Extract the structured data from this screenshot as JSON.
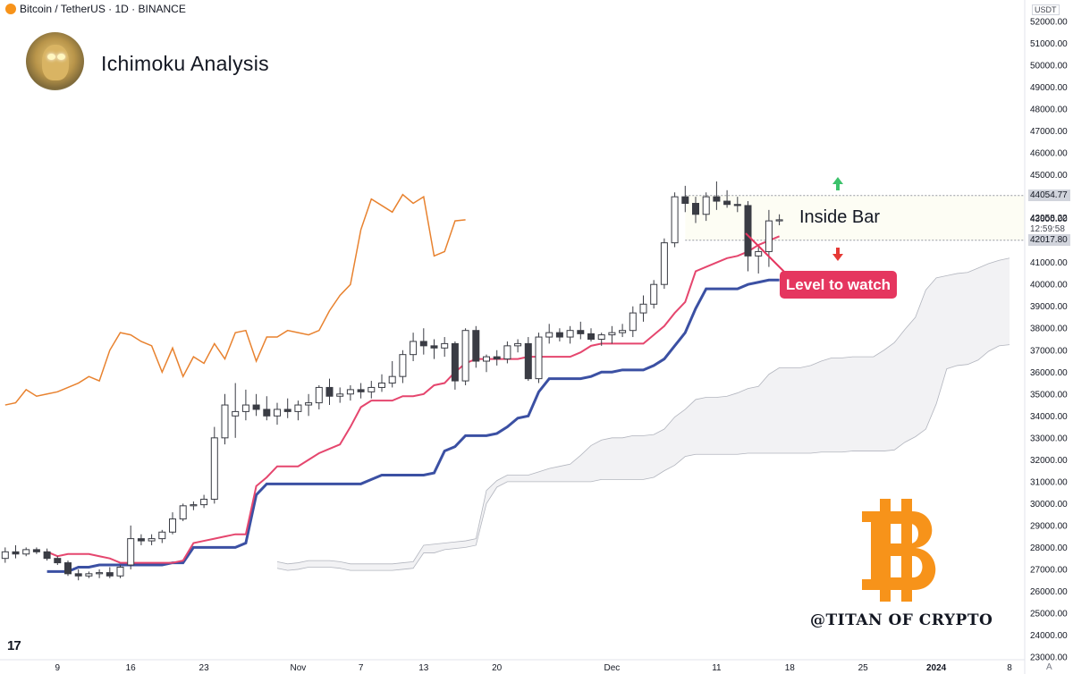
{
  "header": {
    "symbol": "Bitcoin / TetherUS · 1D · BINANCE"
  },
  "title": "Ichimoku Analysis",
  "annotations": {
    "inside_bar": "Inside Bar",
    "level_to_watch": "Level to watch"
  },
  "watermark": "@TITAN OF CRYPTO",
  "price_axis": {
    "currency": "USDT",
    "last_price": "42958.22",
    "countdown": "12:59:58",
    "level_high": "44054.77",
    "level_low": "42017.80",
    "corner": "A"
  },
  "colors": {
    "tenkan": "#e5466e",
    "kijun": "#3b50a3",
    "chikou": "#e8822f",
    "cloud": "#f2f2f4",
    "up": "#ffffff",
    "down": "#3a3c44",
    "accent": "#f7931a"
  },
  "chart_data": {
    "type": "candlestick",
    "ylim": [
      23000,
      52000
    ],
    "y_ticks": [
      23000,
      24000,
      25000,
      26000,
      27000,
      28000,
      29000,
      30000,
      31000,
      32000,
      33000,
      34000,
      35000,
      36000,
      37000,
      38000,
      39000,
      40000,
      41000,
      42000,
      43000,
      44000,
      45000,
      46000,
      47000,
      48000,
      49000,
      50000,
      51000,
      52000
    ],
    "x_ticks": [
      {
        "label": "9",
        "i": 5
      },
      {
        "label": "16",
        "i": 12
      },
      {
        "label": "23",
        "i": 19
      },
      {
        "label": "Nov",
        "i": 28
      },
      {
        "label": "7",
        "i": 34
      },
      {
        "label": "13",
        "i": 40
      },
      {
        "label": "20",
        "i": 47
      },
      {
        "label": "Dec",
        "i": 58
      },
      {
        "label": "11",
        "i": 68
      },
      {
        "label": "18",
        "i": 75
      },
      {
        "label": "25",
        "i": 82
      },
      {
        "label": "2024",
        "i": 89
      },
      {
        "label": "8",
        "i": 96
      }
    ],
    "candles": [
      [
        27500,
        28000,
        27300,
        27800
      ],
      [
        27800,
        28100,
        27500,
        27700
      ],
      [
        27700,
        28000,
        27600,
        27900
      ],
      [
        27900,
        28000,
        27700,
        27800
      ],
      [
        27800,
        27950,
        27400,
        27500
      ],
      [
        27500,
        27600,
        27200,
        27300
      ],
      [
        27300,
        27400,
        26700,
        26800
      ],
      [
        26800,
        27000,
        26500,
        26700
      ],
      [
        26700,
        26900,
        26600,
        26800
      ],
      [
        26800,
        27000,
        26600,
        26850
      ],
      [
        26850,
        27100,
        26600,
        26700
      ],
      [
        26700,
        27200,
        26600,
        27100
      ],
      [
        27200,
        29000,
        27000,
        28400
      ],
      [
        28400,
        28600,
        28100,
        28300
      ],
      [
        28300,
        28600,
        28100,
        28400
      ],
      [
        28400,
        28800,
        28200,
        28700
      ],
      [
        28700,
        29600,
        28600,
        29300
      ],
      [
        29300,
        30000,
        29200,
        29900
      ],
      [
        29900,
        30100,
        29700,
        29950
      ],
      [
        29950,
        30400,
        29800,
        30200
      ],
      [
        30200,
        33500,
        30000,
        33000
      ],
      [
        33000,
        35000,
        32700,
        34500
      ],
      [
        34000,
        35500,
        33000,
        34200
      ],
      [
        34200,
        35200,
        33800,
        34500
      ],
      [
        34500,
        35000,
        34000,
        34300
      ],
      [
        34300,
        34900,
        33800,
        34000
      ],
      [
        34000,
        34600,
        33600,
        34300
      ],
      [
        34300,
        34800,
        33900,
        34200
      ],
      [
        34200,
        34700,
        33800,
        34500
      ],
      [
        34500,
        35000,
        34000,
        34600
      ],
      [
        34600,
        35400,
        34300,
        35300
      ],
      [
        35300,
        35700,
        34500,
        34900
      ],
      [
        34900,
        35300,
        34600,
        35000
      ],
      [
        35000,
        35400,
        34700,
        35200
      ],
      [
        35200,
        35500,
        34800,
        35100
      ],
      [
        35100,
        35600,
        34800,
        35300
      ],
      [
        35300,
        35900,
        35100,
        35500
      ],
      [
        35500,
        36500,
        35300,
        35800
      ],
      [
        35800,
        37000,
        35500,
        36800
      ],
      [
        36800,
        37800,
        36500,
        37400
      ],
      [
        37400,
        38000,
        36800,
        37200
      ],
      [
        37200,
        37500,
        36600,
        37100
      ],
      [
        37100,
        37600,
        36700,
        37300
      ],
      [
        37300,
        37400,
        35200,
        35600
      ],
      [
        35600,
        38000,
        35400,
        37900
      ],
      [
        37900,
        38100,
        36200,
        36500
      ],
      [
        36500,
        36800,
        36000,
        36700
      ],
      [
        36700,
        37000,
        36300,
        36600
      ],
      [
        36600,
        37400,
        36400,
        37200
      ],
      [
        37200,
        37500,
        36900,
        37300
      ],
      [
        37300,
        37600,
        35600,
        35700
      ],
      [
        35700,
        37800,
        35500,
        37600
      ],
      [
        37600,
        38200,
        37300,
        37800
      ],
      [
        37800,
        38000,
        37400,
        37600
      ],
      [
        37600,
        38100,
        37300,
        37900
      ],
      [
        37900,
        38300,
        37500,
        37750
      ],
      [
        37750,
        38000,
        37400,
        37500
      ],
      [
        37500,
        37800,
        37200,
        37700
      ],
      [
        37700,
        38100,
        37300,
        37800
      ],
      [
        37800,
        38200,
        37600,
        37900
      ],
      [
        37900,
        39000,
        37600,
        38700
      ],
      [
        38700,
        39500,
        38300,
        39100
      ],
      [
        39100,
        40200,
        38900,
        40000
      ],
      [
        40000,
        42100,
        39800,
        41900
      ],
      [
        41900,
        44200,
        41700,
        44000
      ],
      [
        44000,
        44500,
        43300,
        43700
      ],
      [
        43700,
        44000,
        42800,
        43200
      ],
      [
        43200,
        44200,
        42900,
        44000
      ],
      [
        44000,
        44700,
        43400,
        43800
      ],
      [
        43800,
        44300,
        43500,
        43650
      ],
      [
        43650,
        44000,
        43300,
        43600
      ],
      [
        43600,
        43800,
        40600,
        41300
      ],
      [
        41300,
        41700,
        40500,
        41500
      ],
      [
        41500,
        43400,
        40800,
        42900
      ],
      [
        42900,
        43200,
        42700,
        42950
      ]
    ],
    "tenkan": [
      27800,
      27600,
      27700,
      27700,
      27700,
      27600,
      27500,
      27300,
      27300,
      27300,
      27300,
      27300,
      27300,
      27400,
      28200,
      28300,
      28400,
      28500,
      28600,
      28600,
      30800,
      31200,
      31700,
      31700,
      31700,
      32000,
      32300,
      32500,
      32700,
      33500,
      34400,
      34700,
      34700,
      34700,
      34900,
      34900,
      35000,
      35400,
      35500,
      36000,
      36400,
      36600,
      36600,
      36600,
      36600,
      36600,
      36700,
      36700,
      36700,
      36700,
      36700,
      36900,
      37200,
      37300,
      37300,
      37300,
      37300,
      37300,
      37700,
      38100,
      38700,
      39200,
      40600,
      40800,
      41000,
      41200,
      41300,
      41500,
      41800,
      42000,
      42200
    ],
    "kijun": [
      26900,
      26900,
      26900,
      27100,
      27100,
      27200,
      27200,
      27200,
      27200,
      27200,
      27200,
      27200,
      27300,
      27300,
      28000,
      28000,
      28000,
      28000,
      28000,
      28200,
      30400,
      30900,
      30900,
      30900,
      30900,
      30900,
      30900,
      30900,
      30900,
      30900,
      30900,
      31100,
      31300,
      31300,
      31300,
      31300,
      31300,
      31400,
      32400,
      32600,
      33100,
      33100,
      33100,
      33200,
      33500,
      33900,
      34000,
      35100,
      35700,
      35700,
      35700,
      35700,
      35800,
      36000,
      36000,
      36100,
      36100,
      36100,
      36300,
      36600,
      37200,
      37800,
      38900,
      39800,
      39800,
      39800,
      39800,
      40000,
      40100,
      40200,
      40200
    ],
    "chikou": [
      34500,
      34600,
      35200,
      34900,
      35000,
      35100,
      35300,
      35500,
      35800,
      35600,
      37000,
      37800,
      37700,
      37400,
      37200,
      36000,
      37100,
      35800,
      36700,
      36400,
      37300,
      36600,
      37800,
      37900,
      36500,
      37600,
      37600,
      37900,
      37800,
      37700,
      37900,
      38800,
      39500,
      40000,
      42500,
      43900,
      43600,
      43300,
      44100,
      43700,
      44000,
      41300,
      41500,
      42900,
      42950
    ]
  }
}
